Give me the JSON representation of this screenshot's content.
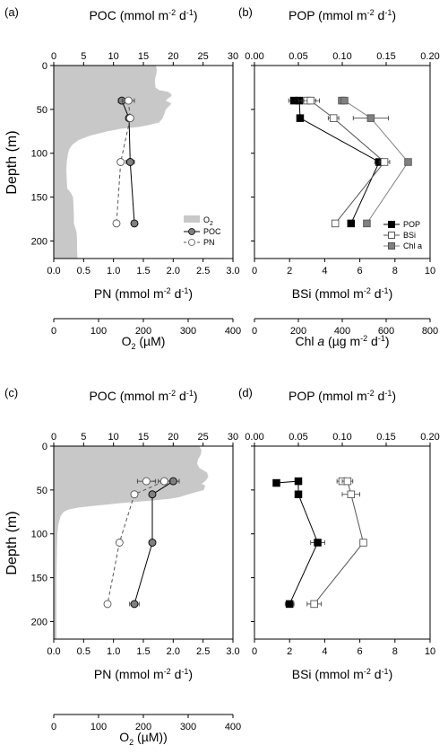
{
  "chart_data": [
    {
      "type": "line",
      "panel": "(a)",
      "ylabel": "Depth (m)",
      "ylim": [
        0,
        220
      ],
      "yticks": [
        0,
        50,
        100,
        150,
        200
      ],
      "axes": {
        "top": {
          "label": "POC (mmol m-2 d-1)",
          "range": [
            0,
            30
          ],
          "ticks": [
            0,
            5,
            10,
            15,
            20,
            25,
            30
          ]
        },
        "bottom": {
          "label": "PN (mmol m-2 d-1)",
          "range": [
            0,
            3
          ],
          "ticks": [
            "0.0",
            "0.5",
            "1.0",
            "1.5",
            "2.0",
            "2.5",
            "3.0"
          ]
        },
        "extra": {
          "label": "O2 (µM)",
          "range": [
            0,
            400
          ],
          "ticks": [
            0,
            100,
            200,
            300,
            400
          ]
        }
      },
      "area": {
        "name": "O2",
        "axis": "extra",
        "profile": [
          [
            0,
            228
          ],
          [
            5,
            230
          ],
          [
            10,
            229
          ],
          [
            15,
            226
          ],
          [
            20,
            226
          ],
          [
            25,
            227
          ],
          [
            28,
            235
          ],
          [
            30,
            255
          ],
          [
            33,
            263
          ],
          [
            35,
            262
          ],
          [
            38,
            254
          ],
          [
            40,
            250
          ],
          [
            43,
            262
          ],
          [
            45,
            260
          ],
          [
            50,
            250
          ],
          [
            55,
            247
          ],
          [
            60,
            243
          ],
          [
            65,
            235
          ],
          [
            68,
            210
          ],
          [
            70,
            190
          ],
          [
            72,
            150
          ],
          [
            75,
            120
          ],
          [
            80,
            80
          ],
          [
            85,
            55
          ],
          [
            90,
            42
          ],
          [
            95,
            35
          ],
          [
            100,
            32
          ],
          [
            110,
            29
          ],
          [
            120,
            28
          ],
          [
            130,
            29
          ],
          [
            140,
            30
          ],
          [
            145,
            38
          ],
          [
            150,
            43
          ],
          [
            160,
            44
          ],
          [
            170,
            45
          ],
          [
            180,
            45
          ],
          [
            190,
            51
          ],
          [
            200,
            52
          ],
          [
            210,
            52
          ],
          [
            220,
            53
          ]
        ]
      },
      "series": [
        {
          "name": "POC",
          "axis": "top",
          "marker": "circle-gray",
          "line": "solid",
          "points": [
            {
              "depth": 40,
              "value": 11.4,
              "err": 0.6
            },
            {
              "depth": 60,
              "value": 12.6,
              "err": 0.5
            },
            {
              "depth": 110,
              "value": 12.8,
              "err": 0.7
            },
            {
              "depth": 180,
              "value": 13.5,
              "err": 0.3
            }
          ]
        },
        {
          "name": "PN",
          "axis": "bottom",
          "marker": "circle-open",
          "line": "dashed",
          "points": [
            {
              "depth": 40,
              "value": 1.25,
              "err": 0.1
            },
            {
              "depth": 60,
              "value": 1.28,
              "err": 0.05
            },
            {
              "depth": 110,
              "value": 1.12,
              "err": 0.05
            },
            {
              "depth": 180,
              "value": 1.05,
              "err": 0
            }
          ]
        }
      ],
      "legend": {
        "position": "bottom-right",
        "entries": [
          "O2",
          "POC",
          "PN"
        ]
      }
    },
    {
      "type": "line",
      "panel": "(b)",
      "ylim": [
        0,
        220
      ],
      "axes": {
        "top": {
          "label": "POP (mmol m-2 d-1)",
          "range": [
            0,
            0.2
          ],
          "ticks": [
            "0.00",
            "0.05",
            "0.10",
            "0.15",
            "0.20"
          ]
        },
        "bottom": {
          "label": "BSi (mmol m-2 d-1)",
          "range": [
            0,
            10
          ],
          "ticks": [
            0,
            2,
            4,
            6,
            8,
            10
          ]
        },
        "extra": {
          "label": "Chl a (µg m-2 d-1)",
          "range": [
            0,
            800
          ],
          "ticks": [
            0,
            200,
            400,
            600,
            800
          ]
        }
      },
      "series": [
        {
          "name": "POP",
          "axis": "top",
          "marker": "square-black",
          "color": "#000000",
          "points": [
            {
              "depth": 40,
              "value": 0.045,
              "err": 0.006
            },
            {
              "depth": 40,
              "value": 0.051,
              "err": 0.004
            },
            {
              "depth": 60,
              "value": 0.052,
              "err": 0
            },
            {
              "depth": 110,
              "value": 0.142,
              "err": 0.005
            },
            {
              "depth": 180,
              "value": 0.11,
              "err": 0
            }
          ]
        },
        {
          "name": "BSi",
          "axis": "bottom",
          "marker": "square-open",
          "color": "#555555",
          "points": [
            {
              "depth": 40,
              "value": 3.0,
              "err": 0.5
            },
            {
              "depth": 40,
              "value": 3.2,
              "err": 0.5
            },
            {
              "depth": 60,
              "value": 4.5,
              "err": 0.3
            },
            {
              "depth": 110,
              "value": 7.4,
              "err": 0.3
            },
            {
              "depth": 180,
              "value": 4.6,
              "err": 0
            }
          ]
        },
        {
          "name": "Chl a",
          "axis": "extra",
          "marker": "square-gray",
          "color": "#808080",
          "points": [
            {
              "depth": 40,
              "value": 398,
              "err": 15
            },
            {
              "depth": 40,
              "value": 410,
              "err": 15
            },
            {
              "depth": 60,
              "value": 530,
              "err": 80
            },
            {
              "depth": 110,
              "value": 700,
              "err": 0
            },
            {
              "depth": 180,
              "value": 512,
              "err": 0
            }
          ]
        }
      ],
      "legend": {
        "position": "bottom-right",
        "entries": [
          "POP",
          "BSi",
          "Chl a"
        ]
      }
    },
    {
      "type": "line",
      "panel": "(c)",
      "ylabel": "Depth (m)",
      "ylim": [
        0,
        220
      ],
      "axes": {
        "top": {
          "label": "POC (mmol m-2 d-1)",
          "range": [
            0,
            30
          ],
          "ticks": [
            0,
            5,
            10,
            15,
            20,
            25,
            30
          ]
        },
        "bottom": {
          "label": "PN (mmol m-2 d-1)",
          "range": [
            0,
            3
          ],
          "ticks": [
            "0.0",
            "0.5",
            "1.0",
            "1.5",
            "2.0",
            "2.5",
            "3.0"
          ]
        },
        "extra": {
          "label": "O2 (µM))",
          "range": [
            0,
            400
          ],
          "ticks": [
            0,
            100,
            200,
            300,
            400
          ]
        }
      },
      "area": {
        "name": "O2",
        "axis": "extra",
        "profile": [
          [
            0,
            325
          ],
          [
            5,
            330
          ],
          [
            10,
            328
          ],
          [
            15,
            322
          ],
          [
            20,
            320
          ],
          [
            25,
            325
          ],
          [
            28,
            335
          ],
          [
            30,
            342
          ],
          [
            35,
            345
          ],
          [
            40,
            338
          ],
          [
            43,
            330
          ],
          [
            45,
            338
          ],
          [
            50,
            335
          ],
          [
            55,
            300
          ],
          [
            58,
            280
          ],
          [
            60,
            260
          ],
          [
            62,
            220
          ],
          [
            65,
            150
          ],
          [
            68,
            90
          ],
          [
            70,
            55
          ],
          [
            72,
            35
          ],
          [
            75,
            22
          ],
          [
            80,
            15
          ],
          [
            90,
            10
          ],
          [
            100,
            8
          ],
          [
            120,
            7
          ],
          [
            150,
            6
          ],
          [
            180,
            6
          ],
          [
            220,
            6
          ]
        ]
      },
      "series": [
        {
          "name": "POC",
          "axis": "top",
          "marker": "circle-gray",
          "line": "solid",
          "points": [
            {
              "depth": 40,
              "value": 20.0,
              "err": 1.0
            },
            {
              "depth": 55,
              "value": 16.5,
              "err": 0
            },
            {
              "depth": 110,
              "value": 16.5,
              "err": 0.5
            },
            {
              "depth": 180,
              "value": 13.5,
              "err": 0.8
            }
          ]
        },
        {
          "name": "PN",
          "axis": "bottom",
          "marker": "circle-open",
          "line": "dashed",
          "points": [
            {
              "depth": 40,
              "value": 1.55,
              "err": 0.15
            },
            {
              "depth": 40,
              "value": 1.85,
              "err": 0.1
            },
            {
              "depth": 55,
              "value": 1.35,
              "err": 0.05
            },
            {
              "depth": 110,
              "value": 1.1,
              "err": 0
            },
            {
              "depth": 180,
              "value": 0.9,
              "err": 0
            }
          ]
        }
      ]
    },
    {
      "type": "line",
      "panel": "(d)",
      "ylim": [
        0,
        220
      ],
      "axes": {
        "top": {
          "label": "POP (mmol m-2 d-1)",
          "range": [
            0,
            0.2
          ],
          "ticks": [
            "0.00",
            "0.05",
            "0.10",
            "0.15",
            "0.20"
          ]
        },
        "bottom": {
          "label": "BSi (mmol m-2 d-1)",
          "range": [
            0,
            10
          ],
          "ticks": [
            0,
            2,
            4,
            6,
            8,
            10
          ]
        }
      },
      "series": [
        {
          "name": "POP",
          "axis": "top",
          "marker": "square-black",
          "color": "#000000",
          "points": [
            {
              "depth": 42,
              "value": 0.025,
              "err": 0.003
            },
            {
              "depth": 40,
              "value": 0.05,
              "err": 0
            },
            {
              "depth": 55,
              "value": 0.05,
              "err": 0
            },
            {
              "depth": 110,
              "value": 0.072,
              "err": 0.008
            },
            {
              "depth": 180,
              "value": 0.04,
              "err": 0.005
            }
          ]
        },
        {
          "name": "BSi",
          "axis": "bottom",
          "marker": "square-open",
          "color": "#555555",
          "points": [
            {
              "depth": 40,
              "value": 5.0,
              "err": 0.3
            },
            {
              "depth": 40,
              "value": 5.3,
              "err": 0.3
            },
            {
              "depth": 55,
              "value": 5.5,
              "err": 0.5
            },
            {
              "depth": 110,
              "value": 6.2,
              "err": 0
            },
            {
              "depth": 180,
              "value": 3.4,
              "err": 0.4
            }
          ]
        }
      ]
    }
  ],
  "labels": {
    "a": {
      "panel": "(a)",
      "top": [
        "POC (mmol m",
        "-2",
        " d",
        "-1",
        ")"
      ],
      "bottom": [
        "PN (mmol m",
        "-2",
        " d",
        "-1",
        ")"
      ],
      "extra": [
        "O",
        "2",
        " (µM)"
      ],
      "ylabel": "Depth (m)",
      "legend": {
        "o2": [
          "O",
          "2"
        ],
        "poc": "POC",
        "pn": "PN"
      }
    },
    "b": {
      "panel": "(b)",
      "top": [
        "POP (mmol m",
        "-2",
        " d",
        "-1",
        ")"
      ],
      "bottom": [
        "BSi (mmol m",
        "-2",
        " d",
        "-1",
        ")"
      ],
      "extra": [
        "Chl ",
        "a",
        " (µg m",
        "-2",
        " d",
        "-1",
        ")"
      ],
      "legend": {
        "pop": "POP",
        "bsi": "BSi",
        "chl": "Chl a"
      }
    },
    "c": {
      "panel": "(c)",
      "top": [
        "POC (mmol m",
        "-2",
        " d",
        "-1",
        ")"
      ],
      "bottom": [
        "PN (mmol m",
        "-2",
        " d",
        "-1",
        ")"
      ],
      "extra": [
        "O",
        "2",
        " (µM))"
      ],
      "ylabel": "Depth (m)"
    },
    "d": {
      "panel": "(d)",
      "top": [
        "POP (mmol m",
        "-2",
        " d",
        "-1",
        ")"
      ],
      "bottom": [
        "BSi (mmol m",
        "-2",
        " d",
        "-1",
        ")"
      ]
    }
  },
  "colors": {
    "o2_fill": "#c8c8c8",
    "poc_fill": "#808080",
    "pop_fill": "#000000",
    "chl_fill": "#808080",
    "bsi_line": "#555555",
    "chl_line": "#808080"
  }
}
